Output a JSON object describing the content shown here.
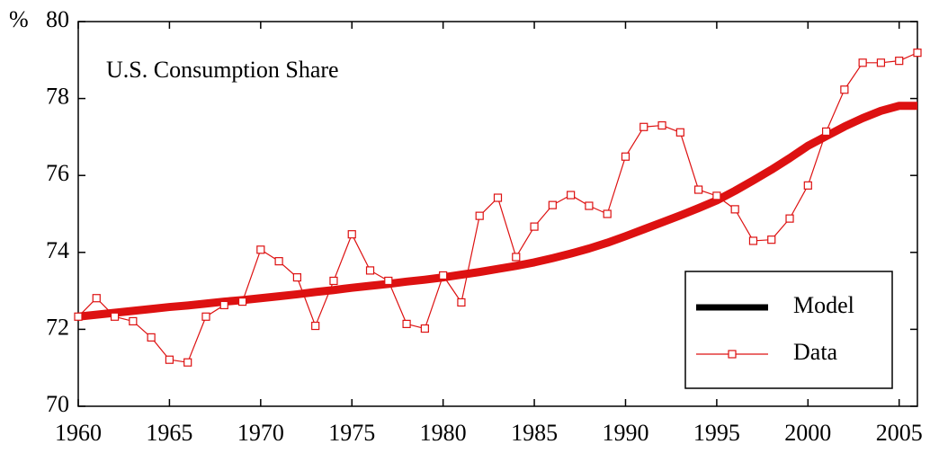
{
  "chart_data": {
    "type": "line",
    "ylabel": "%",
    "annotation": "U.S. Consumption Share",
    "x": [
      1960,
      1961,
      1962,
      1963,
      1964,
      1965,
      1966,
      1967,
      1968,
      1969,
      1970,
      1971,
      1972,
      1973,
      1974,
      1975,
      1976,
      1977,
      1978,
      1979,
      1980,
      1981,
      1982,
      1983,
      1984,
      1985,
      1986,
      1987,
      1988,
      1989,
      1990,
      1991,
      1992,
      1993,
      1994,
      1995,
      1996,
      1997,
      1998,
      1999,
      2000,
      2001,
      2002,
      2003,
      2004,
      2005,
      2006
    ],
    "series": [
      {
        "name": "Model",
        "color": "#dd1111",
        "values": [
          72.33,
          72.38,
          72.43,
          72.48,
          72.53,
          72.58,
          72.62,
          72.67,
          72.72,
          72.76,
          72.81,
          72.86,
          72.91,
          72.97,
          73.02,
          73.08,
          73.13,
          73.18,
          73.24,
          73.29,
          73.35,
          73.42,
          73.49,
          73.57,
          73.65,
          73.74,
          73.85,
          73.97,
          74.1,
          74.25,
          74.42,
          74.6,
          74.78,
          74.96,
          75.15,
          75.35,
          75.6,
          75.87,
          76.15,
          76.45,
          76.77,
          77.02,
          77.27,
          77.49,
          77.68,
          77.81,
          77.81
        ]
      },
      {
        "name": "Data",
        "color": "#dd1111",
        "values": [
          72.33,
          72.81,
          72.33,
          72.21,
          71.79,
          71.21,
          71.14,
          72.33,
          72.63,
          72.72,
          74.07,
          73.77,
          73.35,
          72.09,
          73.26,
          74.47,
          73.53,
          73.26,
          72.14,
          72.02,
          73.4,
          72.7,
          74.95,
          75.42,
          73.88,
          74.67,
          75.23,
          75.49,
          75.21,
          75.0,
          76.49,
          77.26,
          77.3,
          77.12,
          75.63,
          75.47,
          75.12,
          74.3,
          74.33,
          74.88,
          75.74,
          77.14,
          78.23,
          78.93,
          78.93,
          78.98,
          79.19
        ]
      }
    ],
    "xlim": [
      1960,
      2006
    ],
    "xticks": [
      1960,
      1965,
      1970,
      1975,
      1980,
      1985,
      1990,
      1995,
      2000,
      2005
    ],
    "ylim": [
      70,
      80
    ],
    "yticks": [
      70,
      72,
      74,
      76,
      78,
      80
    ],
    "legend": "lower right"
  }
}
